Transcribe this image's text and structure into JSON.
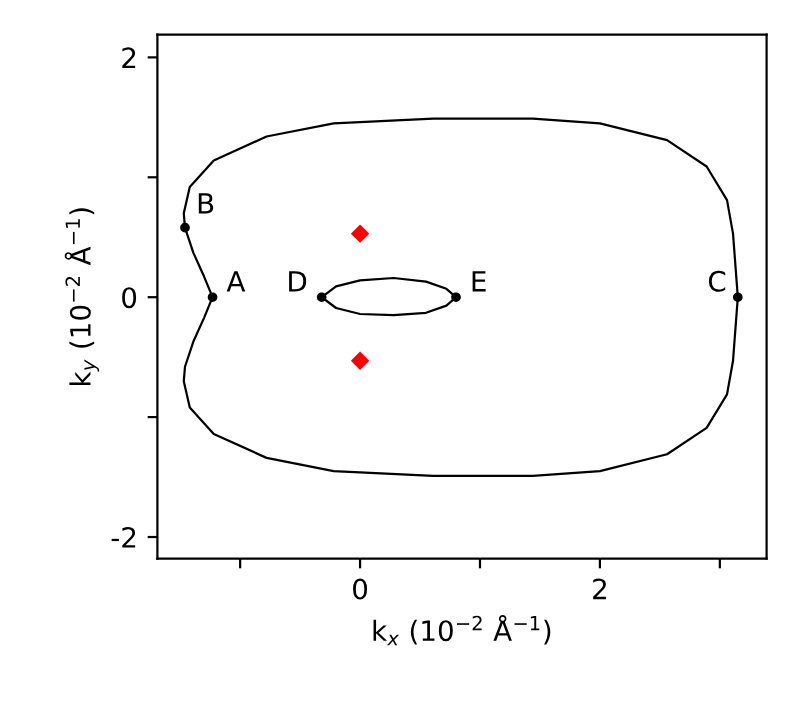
{
  "chart_data": {
    "type": "line",
    "xlabel": "k$_{x}$ (10$^{−2}$ Å$^{−1}$)",
    "ylabel": "k$_{y}$ (10$^{−2}$ Å$^{−1}$)",
    "xlim": [
      -1.69,
      3.39
    ],
    "ylim": [
      -2.18,
      2.19
    ],
    "xticks": [
      {
        "value": -1,
        "label": null
      },
      0,
      {
        "value": 1,
        "label": null
      },
      2,
      {
        "value": 3,
        "label": null
      }
    ],
    "yticks": [
      -2,
      {
        "value": -1,
        "label": null
      },
      0,
      {
        "value": 1,
        "label": null
      },
      2
    ],
    "grid": false,
    "legend": false,
    "marker": "none",
    "line_style": "solid",
    "series": [
      {
        "color": "#000000",
        "x": [
          -0.32,
          -0.2,
          0.0,
          0.28,
          0.55,
          0.72,
          0.8
        ],
        "values": [
          0,
          0.09,
          0.14,
          0.16,
          0.13,
          0.07,
          0
        ]
      },
      {
        "color": "#000000",
        "x": [
          -0.32,
          -0.2,
          0.0,
          0.28,
          0.55,
          0.72,
          0.8
        ],
        "values": [
          0,
          -0.09,
          -0.14,
          -0.15,
          -0.13,
          -0.07,
          0
        ]
      },
      {
        "type": "scatter",
        "color": "#000000",
        "marker": "circle",
        "x": [
          -1.23,
          -1.46,
          3.15,
          -0.32,
          0.8
        ],
        "values": [
          0,
          0.58,
          0,
          0,
          0
        ]
      },
      {
        "type": "scatter",
        "color": "#ff0000",
        "marker": "diamond",
        "x": [
          0,
          0
        ],
        "values": [
          0.53,
          -0.53
        ]
      }
    ],
    "annotations": [
      {
        "text": "A",
        "x": -1.23,
        "y": 0
      },
      {
        "text": "B",
        "x": -1.46,
        "y": 0.58
      },
      {
        "text": "C",
        "x": 3.15,
        "y": 0
      },
      {
        "text": "D",
        "x": -0.32,
        "y": 0
      },
      {
        "text": "E",
        "x": 0.8,
        "y": 0
      }
    ]
  }
}
